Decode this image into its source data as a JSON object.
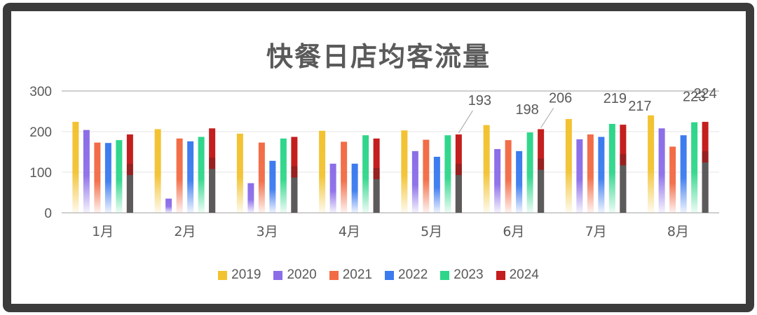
{
  "chart_data": {
    "type": "bar",
    "title": "快餐日店均客流量",
    "categories": [
      "1月",
      "2月",
      "3月",
      "4月",
      "5月",
      "6月",
      "7月",
      "8月"
    ],
    "series": [
      {
        "name": "2019",
        "color": "#f2c230",
        "values": [
          224,
          206,
          195,
          202,
          203,
          216,
          231,
          240
        ]
      },
      {
        "name": "2020",
        "color": "#8b6de8",
        "values": [
          204,
          35,
          73,
          121,
          152,
          157,
          181,
          208
        ]
      },
      {
        "name": "2021",
        "color": "#f26b45",
        "values": [
          173,
          183,
          173,
          175,
          180,
          179,
          193,
          163
        ]
      },
      {
        "name": "2022",
        "color": "#3b7bef",
        "values": [
          172,
          176,
          128,
          121,
          138,
          152,
          187,
          191
        ]
      },
      {
        "name": "2023",
        "color": "#2ed68a",
        "values": [
          179,
          187,
          183,
          191,
          191,
          198,
          219,
          223
        ]
      },
      {
        "name": "2024",
        "color": "#c41e1e",
        "values": [
          193,
          208,
          187,
          183,
          193,
          206,
          217,
          224
        ]
      }
    ],
    "yticks": [
      0,
      100,
      200,
      300
    ],
    "ylim": [
      0,
      300
    ],
    "grid": true,
    "legend_position": "bottom",
    "data_labels": [
      {
        "category": "5月",
        "series": "2024",
        "text": "193"
      },
      {
        "category": "6月",
        "series": "2023",
        "text": "198"
      },
      {
        "category": "6月",
        "series": "2024",
        "text": "206"
      },
      {
        "category": "7月",
        "series": "2023",
        "text": "219"
      },
      {
        "category": "7月",
        "series": "2024",
        "text": "217"
      },
      {
        "category": "8月",
        "series": "2023",
        "text": "223"
      },
      {
        "category": "8月",
        "series": "2024",
        "text": "224"
      }
    ]
  }
}
